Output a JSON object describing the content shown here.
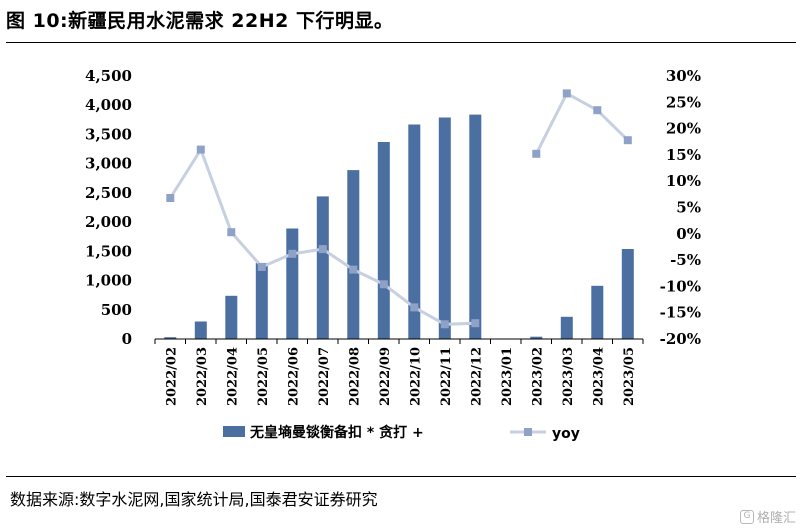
{
  "title": "图 10:新疆民用水泥需求 22H2 下行明显。",
  "source": "数据来源:数字水泥网,国家统计局,国泰君安证券研究",
  "watermark": "格隆汇",
  "colors": {
    "bar": "#4a6fa0",
    "line": "#c6d0e0",
    "marker": "#8ea2c7"
  },
  "chart_data": {
    "type": "bar",
    "categories": [
      "2022/02",
      "2022/03",
      "2022/04",
      "2022/05",
      "2022/06",
      "2022/07",
      "2022/08",
      "2022/09",
      "2022/10",
      "2022/11",
      "2022/12",
      "2023/01",
      "2023/02",
      "2023/03",
      "2023/04",
      "2023/05"
    ],
    "series": [
      {
        "name": "无皇墒曼锬衡备扣 * 贪打 +",
        "type": "bar",
        "axis": "left",
        "values": [
          30,
          300,
          740,
          1300,
          1890,
          2440,
          2890,
          3370,
          3670,
          3790,
          3840,
          null,
          40,
          380,
          910,
          1540
        ]
      },
      {
        "name": "yoy",
        "type": "line",
        "axis": "right",
        "unit": "%",
        "values": [
          6.8,
          16.0,
          0.3,
          -6.3,
          -3.8,
          -2.9,
          -6.8,
          -9.6,
          -14.0,
          -17.2,
          -17.0,
          null,
          15.2,
          26.7,
          23.5,
          17.8
        ]
      }
    ],
    "left_axis": {
      "ylim": [
        0,
        4500
      ],
      "ticks": [
        "0",
        "500",
        "1,000",
        "1,500",
        "2,000",
        "2,500",
        "3,000",
        "3,500",
        "4,000",
        "4,500"
      ]
    },
    "right_axis": {
      "ylim": [
        -20,
        30
      ],
      "ticks": [
        "-20%",
        "-15%",
        "-10%",
        "-5%",
        "0%",
        "5%",
        "10%",
        "15%",
        "20%",
        "25%",
        "30%"
      ]
    },
    "legend_position": "bottom",
    "grid": false
  }
}
